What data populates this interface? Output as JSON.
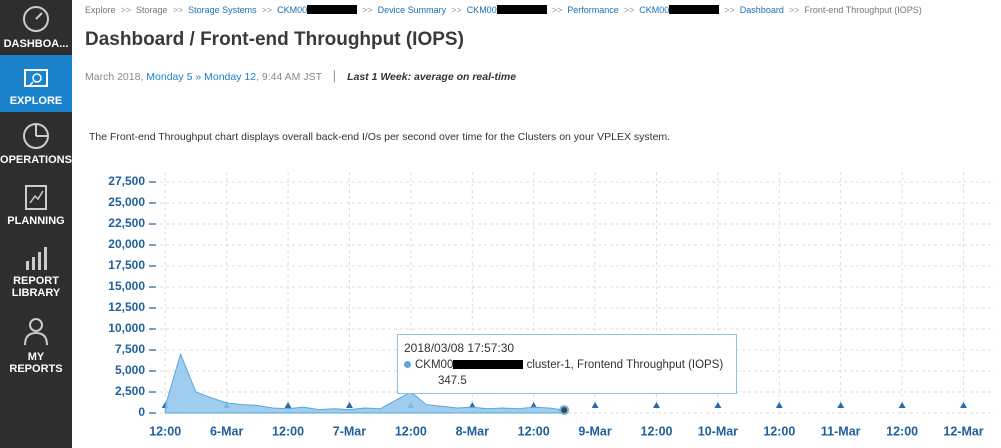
{
  "sidebar": {
    "items": [
      {
        "label": "DASHBOA..."
      },
      {
        "label": "EXPLORE"
      },
      {
        "label": "OPERATIONS"
      },
      {
        "label": "PLANNING"
      },
      {
        "label": "REPORT LIBRARY"
      },
      {
        "label": "MY REPORTS"
      }
    ]
  },
  "breadcrumbs": {
    "separator": ">>",
    "items": [
      "Explore",
      "Storage",
      "Storage Systems",
      "CKM00",
      "Device Summary",
      "CKM00",
      "Performance",
      "CKM00",
      "Dashboard",
      "Front-end Throughput (IOPS)"
    ]
  },
  "header": {
    "title": "Dashboard / Front-end Throughput (IOPS)"
  },
  "period": {
    "month": "March 2018,",
    "start": "Monday 5",
    "arrow": "»",
    "end": "Monday 12",
    "time": ", 9:44 AM JST",
    "divider": "|",
    "mode": "Last 1 Week: average on real-time"
  },
  "description": "The Front-end Throughput chart displays overall back-end I/Os per second over time for the Clusters on your VPLEX system.",
  "chart_data": {
    "type": "area",
    "x": [
      "2018/03/05 12:00",
      "2018/03/05 15:00",
      "2018/03/05 18:00",
      "2018/03/05 21:00",
      "2018/03/06 00:00",
      "2018/03/06 03:00",
      "2018/03/06 06:00",
      "2018/03/06 09:00",
      "2018/03/06 12:00",
      "2018/03/06 15:00",
      "2018/03/06 18:00",
      "2018/03/06 21:00",
      "2018/03/07 00:00",
      "2018/03/07 03:00",
      "2018/03/07 06:00",
      "2018/03/07 09:00",
      "2018/03/07 12:00",
      "2018/03/07 15:00",
      "2018/03/07 18:00",
      "2018/03/07 21:00",
      "2018/03/08 00:00",
      "2018/03/08 03:00",
      "2018/03/08 06:00",
      "2018/03/08 09:00",
      "2018/03/08 12:00",
      "2018/03/08 15:00",
      "2018/03/08 17:57:30"
    ],
    "series": [
      {
        "name": "cluster-1, Frontend Throughput (IOPS)",
        "color": "#8ec4ec",
        "values": [
          800,
          7000,
          2500,
          1800,
          1200,
          1000,
          900,
          600,
          500,
          700,
          400,
          500,
          400,
          600,
          500,
          1500,
          2500,
          1000,
          800,
          600,
          700,
          500,
          600,
          500,
          700,
          600,
          347.5
        ]
      }
    ],
    "tooltip": {
      "device": "CKM00",
      "index": 26
    },
    "xlim": [
      "2018/03/05 10:00",
      "2018/03/12 04:00"
    ],
    "xticks": [
      {
        "value": "2018/03/05 12:00",
        "label": "12:00"
      },
      {
        "value": "2018/03/06 00:00",
        "label": "6-Mar"
      },
      {
        "value": "2018/03/06 12:00",
        "label": "12:00"
      },
      {
        "value": "2018/03/07 00:00",
        "label": "7-Mar"
      },
      {
        "value": "2018/03/07 12:00",
        "label": "12:00"
      },
      {
        "value": "2018/03/08 00:00",
        "label": "8-Mar"
      },
      {
        "value": "2018/03/08 12:00",
        "label": "12:00"
      },
      {
        "value": "2018/03/09 00:00",
        "label": "9-Mar"
      },
      {
        "value": "2018/03/09 12:00",
        "label": "12:00"
      },
      {
        "value": "2018/03/10 00:00",
        "label": "10-Mar"
      },
      {
        "value": "2018/03/10 12:00",
        "label": "12:00"
      },
      {
        "value": "2018/03/11 00:00",
        "label": "11-Mar"
      },
      {
        "value": "2018/03/11 12:00",
        "label": "12:00"
      },
      {
        "value": "2018/03/12 00:00",
        "label": "12-Mar"
      }
    ],
    "ylim": [
      0,
      27500
    ],
    "yticks": [
      0,
      {
        "value": 2500,
        "label": "2,500"
      },
      {
        "value": 5000,
        "label": "5,000"
      },
      {
        "value": 7500,
        "label": "7,500"
      },
      {
        "value": 10000,
        "label": "10,000"
      },
      {
        "value": 12500,
        "label": "12,500"
      },
      {
        "value": 15000,
        "label": "15,000"
      },
      {
        "value": 17500,
        "label": "17,500"
      },
      {
        "value": 20000,
        "label": "20,000"
      },
      {
        "value": 22500,
        "label": "22,500"
      },
      {
        "value": 25000,
        "label": "25,000"
      },
      {
        "value": 27500,
        "label": "27,500"
      }
    ],
    "grid": true
  }
}
